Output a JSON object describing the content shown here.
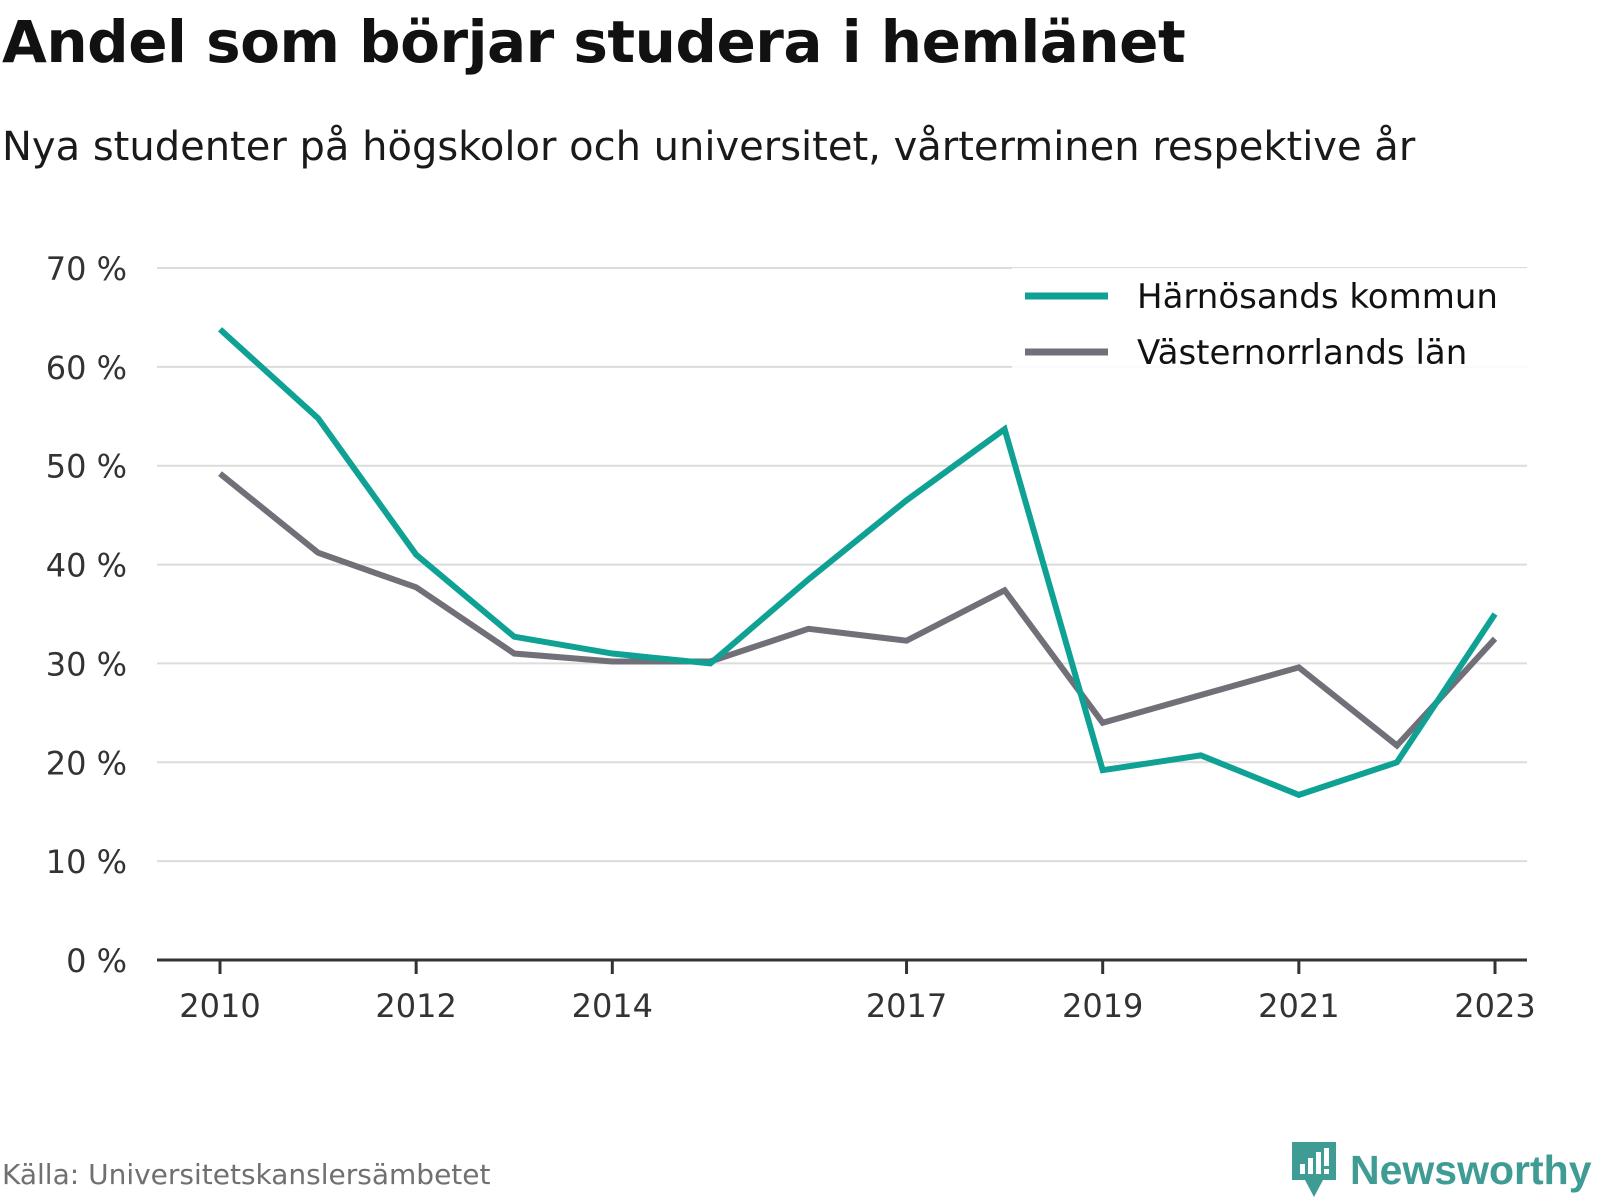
{
  "title": "Andel som börjar studera i hemlänet",
  "subtitle": "Nya studenter på högskolor och universitet, vårterminen respektive år",
  "source": "Källa: Universitetskanslersämbetet",
  "brand": {
    "name": "Newsworthy",
    "icon": "newsworthy-logo-icon",
    "color": "#3f9c94"
  },
  "chart_data": {
    "type": "line",
    "x": [
      2010,
      2011,
      2012,
      2013,
      2014,
      2015,
      2016,
      2017,
      2018,
      2019,
      2020,
      2021,
      2022,
      2023
    ],
    "x_tick_labels": [
      "2010",
      "2012",
      "2014",
      "2017",
      "2019",
      "2021",
      "2023"
    ],
    "x_tick_values": [
      2010,
      2012,
      2014,
      2017,
      2019,
      2021,
      2023
    ],
    "y_tick_labels": [
      "0 %",
      "10 %",
      "20 %",
      "30 %",
      "40 %",
      "50 %",
      "60 %",
      "70 %"
    ],
    "y_tick_values": [
      0,
      10,
      20,
      30,
      40,
      50,
      60,
      70
    ],
    "ylim": [
      0,
      70
    ],
    "grid": true,
    "legend_position": "top-right",
    "series": [
      {
        "name": "Härnösands kommun",
        "color": "#0fa294",
        "values": [
          63.8,
          54.8,
          41.0,
          32.7,
          31.0,
          30.0,
          38.5,
          46.5,
          53.7,
          19.2,
          20.7,
          16.7,
          20.0,
          35.0
        ]
      },
      {
        "name": "Västernorrlands län",
        "color": "#717079",
        "values": [
          49.2,
          41.2,
          37.7,
          31.0,
          30.2,
          30.2,
          33.5,
          32.3,
          37.4,
          24.0,
          26.8,
          29.6,
          21.7,
          32.5
        ]
      }
    ]
  }
}
